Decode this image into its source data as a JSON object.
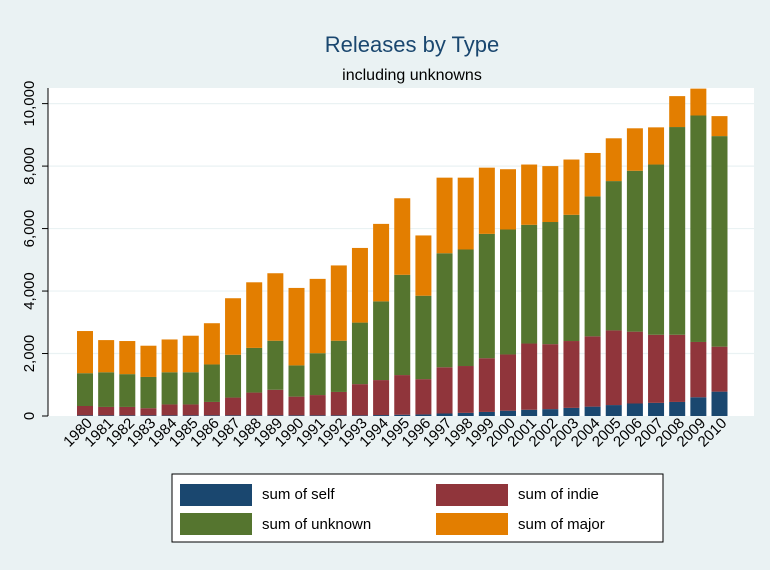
{
  "chart_data": {
    "type": "bar",
    "stacked": true,
    "title": "Releases by Type",
    "subtitle": "including unknowns",
    "xlabel": "",
    "ylabel": "",
    "ylim": [
      0,
      10500
    ],
    "y_ticks": [
      0,
      2000,
      4000,
      6000,
      8000,
      10000
    ],
    "y_tick_labels": [
      "0",
      "2,000",
      "4,000",
      "6,000",
      "8,000",
      "10,000"
    ],
    "grid": true,
    "legend_position": "bottom",
    "categories": [
      "1980",
      "1981",
      "1982",
      "1983",
      "1984",
      "1985",
      "1986",
      "1987",
      "1988",
      "1989",
      "1990",
      "1991",
      "1992",
      "1993",
      "1994",
      "1995",
      "1996",
      "1997",
      "1998",
      "1999",
      "2000",
      "2001",
      "2002",
      "2003",
      "2004",
      "2005",
      "2006",
      "2007",
      "2008",
      "2009",
      "2010"
    ],
    "series": [
      {
        "name": "sum of self",
        "color": "#1a476f",
        "values": [
          20,
          20,
          20,
          20,
          20,
          20,
          20,
          20,
          20,
          20,
          20,
          20,
          20,
          20,
          30,
          40,
          50,
          80,
          100,
          130,
          170,
          200,
          220,
          260,
          300,
          350,
          400,
          420,
          450,
          600,
          780
        ]
      },
      {
        "name": "sum of indie",
        "color": "#90353b",
        "values": [
          300,
          270,
          270,
          230,
          350,
          350,
          430,
          570,
          730,
          820,
          600,
          650,
          750,
          1000,
          1120,
          1270,
          1130,
          1480,
          1500,
          1720,
          1800,
          2120,
          2080,
          2140,
          2250,
          2390,
          2300,
          2180,
          2150,
          1770,
          1440
        ]
      },
      {
        "name": "sum of unknown",
        "color": "#55752f",
        "values": [
          1050,
          1110,
          1050,
          1000,
          1030,
          1030,
          1200,
          1370,
          1430,
          1570,
          1000,
          1340,
          1640,
          1970,
          2520,
          3210,
          2670,
          3650,
          3730,
          3980,
          4000,
          3800,
          3910,
          4040,
          4480,
          4780,
          5150,
          5450,
          6650,
          7250,
          6740
        ]
      },
      {
        "name": "sum of major",
        "color": "#e37e00",
        "values": [
          1350,
          1030,
          1060,
          1000,
          1050,
          1170,
          1320,
          1810,
          2100,
          2160,
          2480,
          2380,
          2410,
          2390,
          2480,
          2450,
          1930,
          2420,
          2300,
          2120,
          1930,
          1930,
          1790,
          1770,
          1390,
          1370,
          1360,
          1190,
          990,
          860,
          640
        ]
      }
    ]
  }
}
